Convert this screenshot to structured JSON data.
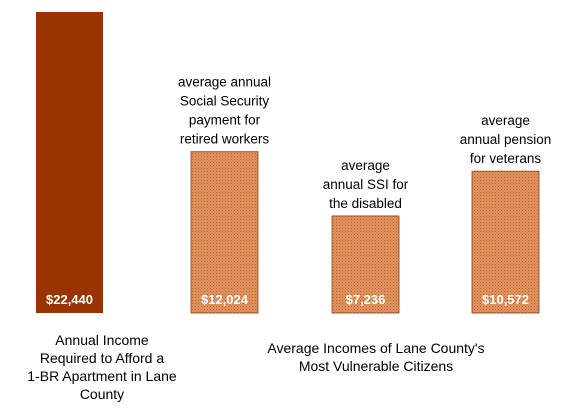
{
  "chart_data": {
    "type": "bar",
    "categories": [
      "Annual Income Required to Afford a 1-BR Apartment in Lane County",
      "average annual Social Security payment for retired workers",
      "average annual SSI for the disabled",
      "average annual pension for veterans"
    ],
    "values": [
      22440,
      12024,
      7236,
      10572
    ],
    "value_labels": [
      "$22,440",
      "$12,024",
      "$7,236",
      "$10,572"
    ],
    "bar_label_lines": [
      [],
      [
        "average annual",
        "Social Security",
        "payment for",
        "retired workers"
      ],
      [
        "average",
        "annual SSI for",
        "the disabled"
      ],
      [
        "average",
        "annual pension",
        "for veterans"
      ]
    ],
    "bottom_caption_first_lines": [
      "Annual Income",
      "Required to Afford a",
      "1-BR Apartment in Lane",
      "County"
    ],
    "group_caption_lines": [
      "Average Incomes of Lane County's",
      "Most Vulnerable Citizens"
    ],
    "ylim": [
      0,
      22440
    ],
    "grid": false,
    "legend": "none"
  },
  "colors": {
    "first_bar": "#993300",
    "bar_fill": "#E39562",
    "bar_dot": "#B8602C",
    "bar_stroke": "#8A3A12",
    "value_text": "#ffffff"
  }
}
